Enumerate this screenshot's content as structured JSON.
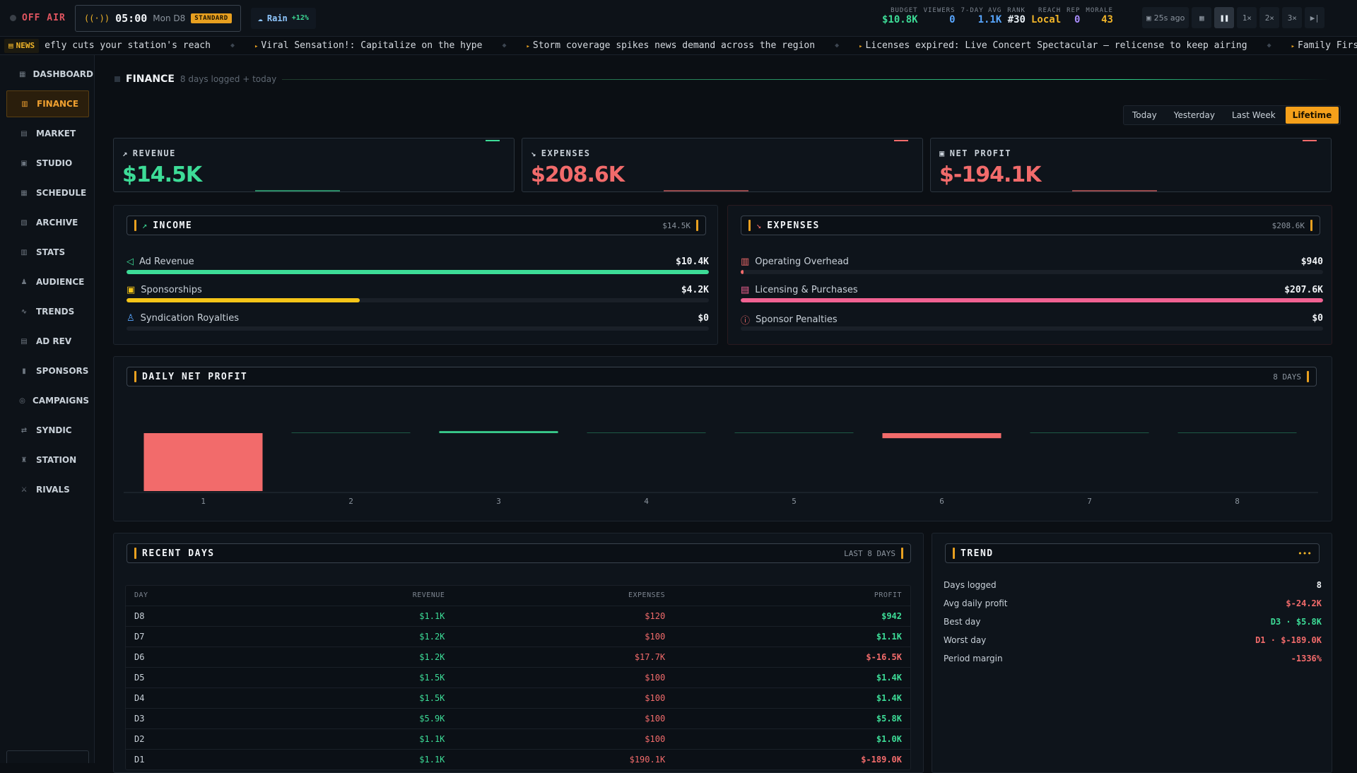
{
  "topbar": {
    "status": "OFF AIR",
    "time": "05:00",
    "day": "Mon D8",
    "mode": "STANDARD",
    "weather": "Rain",
    "weather_mod": "+12%",
    "stats": [
      {
        "key": "BUDGET",
        "value": "$10.8K",
        "color": "#3ddc97"
      },
      {
        "key": "VIEWERS",
        "value": "0",
        "color": "#58a6ff"
      },
      {
        "key": "7-DAY AVG",
        "value": "1.1K",
        "color": "#58a6ff"
      },
      {
        "key": "RANK",
        "value": "#30",
        "color": "#e6edf3"
      },
      {
        "key": "REACH",
        "value": "Local",
        "color": "#f0b429"
      },
      {
        "key": "REP",
        "value": "0",
        "color": "#a78bfa"
      },
      {
        "key": "MORALE",
        "value": "43",
        "color": "#f0b429"
      }
    ],
    "saved": "25s ago",
    "speeds": [
      "1×",
      "2×",
      "3×"
    ]
  },
  "ticker": {
    "badge": "NEWS",
    "items": [
      "efly cuts your station's reach",
      "Viral Sensation!: Capitalize on the hype",
      "Storm coverage spikes news demand across the region",
      "Licenses expired: Live Concert Spectacular — relicense to keep airing",
      "Family First"
    ]
  },
  "sidebar": {
    "items": [
      {
        "label": "DASHBOARD",
        "icon": "dashboard-icon"
      },
      {
        "label": "FINANCE",
        "icon": "finance-icon",
        "active": true
      },
      {
        "label": "MARKET",
        "icon": "market-icon"
      },
      {
        "label": "STUDIO",
        "icon": "studio-icon"
      },
      {
        "label": "SCHEDULE",
        "icon": "schedule-icon"
      },
      {
        "label": "ARCHIVE",
        "icon": "archive-icon"
      },
      {
        "label": "STATS",
        "icon": "stats-icon"
      },
      {
        "label": "AUDIENCE",
        "icon": "audience-icon"
      },
      {
        "label": "TRENDS",
        "icon": "trends-icon"
      },
      {
        "label": "AD REV",
        "icon": "ad-rev-icon"
      },
      {
        "label": "SPONSORS",
        "icon": "sponsors-icon"
      },
      {
        "label": "CAMPAIGNS",
        "icon": "campaigns-icon"
      },
      {
        "label": "SYNDIC",
        "icon": "syndic-icon"
      },
      {
        "label": "STATION",
        "icon": "station-icon"
      },
      {
        "label": "RIVALS",
        "icon": "rivals-icon"
      }
    ]
  },
  "page": {
    "title": "FINANCE",
    "subtitle": "8 days logged + today",
    "periods": [
      "Today",
      "Yesterday",
      "Last Week",
      "Lifetime"
    ],
    "active_period": "Lifetime"
  },
  "kpis": [
    {
      "label": "REVENUE",
      "value": "$14.5K",
      "color": "#3ddc97"
    },
    {
      "label": "EXPENSES",
      "value": "$208.6K",
      "color": "#f26b6b"
    },
    {
      "label": "NET PROFIT",
      "value": "$-194.1K",
      "color": "#f26b6b"
    }
  ],
  "income": {
    "title": "INCOME",
    "total": "$14.5K",
    "rows": [
      {
        "name": "Ad Revenue",
        "amount": "$10.4K",
        "fraction": 1.0,
        "color": "#3ddc97",
        "icon": "megaphone-icon"
      },
      {
        "name": "Sponsorships",
        "amount": "$4.2K",
        "fraction": 0.4,
        "color": "#f5c518",
        "icon": "handshake-icon"
      },
      {
        "name": "Syndication Royalties",
        "amount": "$0",
        "fraction": 0,
        "color": "#58a6ff",
        "icon": "network-icon"
      }
    ]
  },
  "expenses": {
    "title": "EXPENSES",
    "total": "$208.6K",
    "rows": [
      {
        "name": "Operating Overhead",
        "amount": "$940",
        "fraction": 0.005,
        "color": "#f26b6b",
        "icon": "building-icon"
      },
      {
        "name": "Licensing & Purchases",
        "amount": "$207.6K",
        "fraction": 1.0,
        "color": "#f06292",
        "icon": "license-icon"
      },
      {
        "name": "Sponsor Penalties",
        "amount": "$0",
        "fraction": 0,
        "color": "#f26b6b",
        "icon": "warning-icon"
      }
    ]
  },
  "daily": {
    "title": "DAILY NET PROFIT",
    "badge": "8 DAYS"
  },
  "chart_data": {
    "type": "bar",
    "categories": [
      "1",
      "2",
      "3",
      "4",
      "5",
      "6",
      "7",
      "8"
    ],
    "values": [
      -189.0,
      1.0,
      5.8,
      1.4,
      1.4,
      -16.5,
      1.1,
      0.942
    ],
    "unit": "$K",
    "colors": {
      "positive": "#3ddc97",
      "negative": "#f26b6b"
    }
  },
  "recent": {
    "title": "RECENT DAYS",
    "badge": "LAST 8 DAYS",
    "headers": [
      "DAY",
      "REVENUE",
      "EXPENSES",
      "PROFIT"
    ],
    "rows": [
      {
        "day": "D8",
        "revenue": "$1.1K",
        "expenses": "$120",
        "profit": "$942",
        "positive": true
      },
      {
        "day": "D7",
        "revenue": "$1.2K",
        "expenses": "$100",
        "profit": "$1.1K",
        "positive": true
      },
      {
        "day": "D6",
        "revenue": "$1.2K",
        "expenses": "$17.7K",
        "profit": "$-16.5K",
        "positive": false
      },
      {
        "day": "D5",
        "revenue": "$1.5K",
        "expenses": "$100",
        "profit": "$1.4K",
        "positive": true
      },
      {
        "day": "D4",
        "revenue": "$1.5K",
        "expenses": "$100",
        "profit": "$1.4K",
        "positive": true
      },
      {
        "day": "D3",
        "revenue": "$5.9K",
        "expenses": "$100",
        "profit": "$5.8K",
        "positive": true
      },
      {
        "day": "D2",
        "revenue": "$1.1K",
        "expenses": "$100",
        "profit": "$1.0K",
        "positive": true
      },
      {
        "day": "D1",
        "revenue": "$1.1K",
        "expenses": "$190.1K",
        "profit": "$-189.0K",
        "positive": false
      }
    ]
  },
  "trend": {
    "title": "TREND",
    "rows": [
      {
        "key": "Days logged",
        "value": "8",
        "color": "#f0f3f6"
      },
      {
        "key": "Avg daily profit",
        "value": "$-24.2K",
        "color": "#f26b6b"
      },
      {
        "key": "Best day",
        "value": "D3 · $5.8K",
        "color": "#3ddc97"
      },
      {
        "key": "Worst day",
        "value": "D1 · $-189.0K",
        "color": "#f26b6b"
      },
      {
        "key": "Period margin",
        "value": "-1336%",
        "color": "#f26b6b"
      }
    ]
  }
}
